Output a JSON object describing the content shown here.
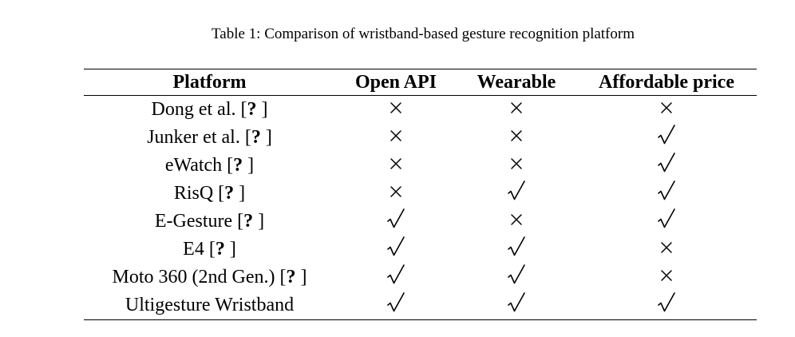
{
  "caption": "Table 1: Comparison of wristband-based gesture recognition platform",
  "columns": [
    "Platform",
    "Open API",
    "Wearable",
    "Affordable price"
  ],
  "rows": [
    {
      "name": "Dong et al. [",
      "ref": "?",
      "close": " ]",
      "marks": [
        "cross",
        "cross",
        "cross"
      ]
    },
    {
      "name": "Junker et al. [",
      "ref": "?",
      "close": " ]",
      "marks": [
        "cross",
        "cross",
        "check"
      ]
    },
    {
      "name": "eWatch [",
      "ref": "?",
      "close": " ]",
      "marks": [
        "cross",
        "cross",
        "check"
      ]
    },
    {
      "name": "RisQ [",
      "ref": "?",
      "close": " ]",
      "marks": [
        "cross",
        "check",
        "check"
      ]
    },
    {
      "name": "E-Gesture [",
      "ref": "?",
      "close": " ]",
      "marks": [
        "check",
        "cross",
        "check"
      ]
    },
    {
      "name": "E4 [",
      "ref": "?",
      "close": " ]",
      "marks": [
        "check",
        "check",
        "cross"
      ]
    },
    {
      "name": "Moto 360 (2nd Gen.) [",
      "ref": "?",
      "close": " ]",
      "marks": [
        "check",
        "check",
        "cross"
      ]
    },
    {
      "name": "Ultigesture Wristband",
      "ref": "",
      "close": "",
      "marks": [
        "check",
        "check",
        "check"
      ]
    }
  ]
}
